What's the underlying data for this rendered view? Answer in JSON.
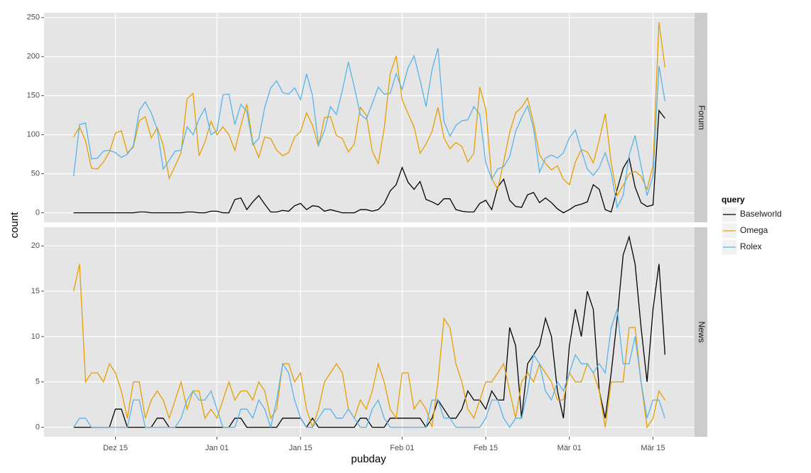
{
  "chart_data": [
    {
      "type": "line",
      "strip": "Forum",
      "ylabel": "count",
      "legend_title": "query",
      "x": [
        "Dez 08",
        "Dez 09",
        "Dez 10",
        "Dez 11",
        "Dez 12",
        "Dez 13",
        "Dez 14",
        "Dez 15",
        "Dez 16",
        "Dez 17",
        "Dez 18",
        "Dez 19",
        "Dez 20",
        "Dez 21",
        "Dez 22",
        "Dez 23",
        "Dez 24",
        "Dez 25",
        "Dez 26",
        "Dez 27",
        "Dez 28",
        "Dez 29",
        "Dez 30",
        "Dez 31",
        "Jan 01",
        "Jan 02",
        "Jan 03",
        "Jan 04",
        "Jan 05",
        "Jan 06",
        "Jan 07",
        "Jan 08",
        "Jan 09",
        "Jan 10",
        "Jan 11",
        "Jan 12",
        "Jan 13",
        "Jan 14",
        "Jan 15",
        "Jan 16",
        "Jan 17",
        "Jan 18",
        "Jan 19",
        "Jan 20",
        "Jan 21",
        "Jan 22",
        "Jan 23",
        "Jan 24",
        "Jan 25",
        "Jan 26",
        "Jan 27",
        "Jan 28",
        "Jan 29",
        "Jan 30",
        "Jan 31",
        "Feb 01",
        "Feb 02",
        "Feb 03",
        "Feb 04",
        "Feb 05",
        "Feb 06",
        "Feb 07",
        "Feb 08",
        "Feb 09",
        "Feb 10",
        "Feb 11",
        "Feb 12",
        "Feb 13",
        "Feb 14",
        "Feb 15",
        "Feb 16",
        "Feb 17",
        "Feb 18",
        "Feb 19",
        "Feb 20",
        "Feb 21",
        "Feb 22",
        "Feb 23",
        "Feb 24",
        "Feb 25",
        "Feb 26",
        "Feb 27",
        "Feb 28",
        "Mär 01",
        "Mär 02",
        "Mär 03",
        "Mär 04",
        "Mär 05",
        "Mär 06",
        "Mär 07",
        "Mär 08",
        "Mär 09",
        "Mär 10",
        "Mär 11",
        "Mär 12",
        "Mär 13",
        "Mär 14",
        "Mär 15",
        "Mär 16",
        "Mär 17"
      ],
      "xticks": [
        "Dez 15",
        "Jan 01",
        "Jan 15",
        "Feb 01",
        "Feb 15",
        "Mär 01",
        "Mär 15"
      ],
      "ylim": [
        -12.2,
        256.2
      ],
      "yticks": [
        0,
        50,
        100,
        150,
        200,
        250
      ],
      "grid": true,
      "series": [
        {
          "name": "Baselworld",
          "color": "#000000",
          "values": [
            0,
            0,
            0,
            0,
            0,
            0,
            0,
            0,
            0,
            0,
            0,
            1,
            1,
            0,
            0,
            0,
            0,
            0,
            0,
            1,
            1,
            0,
            0,
            2,
            2,
            0,
            0,
            17,
            19,
            4,
            14,
            22,
            11,
            1,
            1,
            3,
            2,
            9,
            12,
            4,
            9,
            8,
            2,
            4,
            2,
            0,
            0,
            0,
            4,
            4,
            2,
            4,
            12,
            28,
            36,
            58,
            39,
            30,
            40,
            17,
            14,
            10,
            18,
            18,
            4,
            2,
            1,
            1,
            12,
            16,
            4,
            33,
            43,
            16,
            8,
            7,
            23,
            26,
            13,
            19,
            13,
            5,
            0,
            4,
            9,
            11,
            14,
            36,
            30,
            4,
            1,
            30,
            57,
            70,
            33,
            13,
            8,
            10,
            131,
            121
          ]
        },
        {
          "name": "Omega",
          "color": "#E69F00",
          "values": [
            97,
            110,
            92,
            57,
            56,
            65,
            78,
            102,
            105,
            77,
            84,
            118,
            123,
            96,
            109,
            87,
            44,
            60,
            77,
            146,
            153,
            73,
            91,
            117,
            100,
            110,
            100,
            80,
            112,
            139,
            90,
            71,
            97,
            95,
            80,
            73,
            77,
            97,
            104,
            128,
            112,
            85,
            122,
            123,
            99,
            95,
            78,
            88,
            135,
            125,
            79,
            63,
            108,
            178,
            201,
            145,
            127,
            110,
            76,
            88,
            104,
            135,
            96,
            82,
            90,
            85,
            65,
            76,
            161,
            133,
            44,
            30,
            65,
            103,
            128,
            135,
            147,
            115,
            74,
            63,
            55,
            60,
            43,
            36,
            65,
            81,
            78,
            64,
            93,
            127,
            64,
            22,
            35,
            50,
            53,
            47,
            30,
            60,
            244,
            186
          ]
        },
        {
          "name": "Rolex",
          "color": "#56B4E9",
          "values": [
            47,
            113,
            115,
            69,
            70,
            79,
            80,
            77,
            71,
            75,
            86,
            131,
            142,
            128,
            107,
            56,
            67,
            79,
            80,
            110,
            100,
            120,
            134,
            100,
            105,
            151,
            152,
            113,
            139,
            130,
            87,
            95,
            135,
            160,
            169,
            154,
            152,
            160,
            145,
            178,
            150,
            87,
            105,
            136,
            126,
            157,
            193,
            161,
            126,
            120,
            140,
            161,
            152,
            153,
            178,
            158,
            186,
            201,
            170,
            136,
            183,
            211,
            117,
            98,
            112,
            118,
            119,
            136,
            126,
            64,
            43,
            56,
            59,
            72,
            104,
            122,
            137,
            108,
            52,
            70,
            74,
            70,
            77,
            96,
            106,
            80,
            56,
            48,
            58,
            77,
            52,
            7,
            22,
            74,
            99,
            60,
            22,
            47,
            188,
            143
          ]
        }
      ]
    },
    {
      "type": "line",
      "strip": "News",
      "xlabel": "pubday",
      "x": [
        "Dez 08",
        "Dez 09",
        "Dez 10",
        "Dez 11",
        "Dez 12",
        "Dez 13",
        "Dez 14",
        "Dez 15",
        "Dez 16",
        "Dez 17",
        "Dez 18",
        "Dez 19",
        "Dez 20",
        "Dez 21",
        "Dez 22",
        "Dez 23",
        "Dez 24",
        "Dez 25",
        "Dez 26",
        "Dez 27",
        "Dez 28",
        "Dez 29",
        "Dez 30",
        "Dez 31",
        "Jan 01",
        "Jan 02",
        "Jan 03",
        "Jan 04",
        "Jan 05",
        "Jan 06",
        "Jan 07",
        "Jan 08",
        "Jan 09",
        "Jan 10",
        "Jan 11",
        "Jan 12",
        "Jan 13",
        "Jan 14",
        "Jan 15",
        "Jan 16",
        "Jan 17",
        "Jan 18",
        "Jan 19",
        "Jan 20",
        "Jan 21",
        "Jan 22",
        "Jan 23",
        "Jan 24",
        "Jan 25",
        "Jan 26",
        "Jan 27",
        "Jan 28",
        "Jan 29",
        "Jan 30",
        "Jan 31",
        "Feb 01",
        "Feb 02",
        "Feb 03",
        "Feb 04",
        "Feb 05",
        "Feb 06",
        "Feb 07",
        "Feb 08",
        "Feb 09",
        "Feb 10",
        "Feb 11",
        "Feb 12",
        "Feb 13",
        "Feb 14",
        "Feb 15",
        "Feb 16",
        "Feb 17",
        "Feb 18",
        "Feb 19",
        "Feb 20",
        "Feb 21",
        "Feb 22",
        "Feb 23",
        "Feb 24",
        "Feb 25",
        "Feb 26",
        "Feb 27",
        "Feb 28",
        "Mär 01",
        "Mär 02",
        "Mär 03",
        "Mär 04",
        "Mär 05",
        "Mär 06",
        "Mär 07",
        "Mär 08",
        "Mär 09",
        "Mär 10",
        "Mär 11",
        "Mär 12",
        "Mär 13",
        "Mär 14",
        "Mär 15",
        "Mär 16",
        "Mär 17"
      ],
      "xticks": [
        "Dez 15",
        "Jan 01",
        "Jan 15",
        "Feb 01",
        "Feb 15",
        "Mär 01",
        "Mär 15"
      ],
      "ylim": [
        -1.05,
        22.05
      ],
      "yticks": [
        0,
        5,
        10,
        15,
        20
      ],
      "grid": true,
      "series": [
        {
          "name": "Baselworld",
          "color": "#000000",
          "values": [
            0,
            0,
            0,
            0,
            0,
            0,
            0,
            2,
            2,
            0,
            0,
            0,
            0,
            0,
            1,
            1,
            0,
            0,
            0,
            0,
            0,
            0,
            0,
            0,
            0,
            0,
            0,
            1,
            1,
            0,
            0,
            0,
            0,
            0,
            0,
            1,
            1,
            1,
            1,
            0,
            1,
            0,
            0,
            0,
            0,
            0,
            0,
            0,
            1,
            1,
            0,
            0,
            0,
            1,
            1,
            1,
            1,
            1,
            1,
            0,
            1,
            3,
            2,
            1,
            1,
            2,
            4,
            3,
            3,
            2,
            4,
            3,
            3,
            11,
            9,
            1,
            7,
            8,
            9,
            12,
            10,
            4,
            1,
            9,
            13,
            10,
            15,
            13,
            4,
            1,
            6,
            12,
            19,
            21,
            18,
            11,
            5,
            13,
            18,
            8
          ]
        },
        {
          "name": "Omega",
          "color": "#E69F00",
          "values": [
            15,
            18,
            5,
            6,
            6,
            5,
            7,
            6,
            4,
            1,
            5,
            5,
            1,
            3,
            4,
            3,
            1,
            3,
            5,
            2,
            4,
            4,
            1,
            2,
            1,
            3,
            5,
            3,
            4,
            4,
            3,
            5,
            4,
            1,
            2,
            7,
            7,
            5,
            6,
            2,
            0,
            2,
            5,
            6,
            7,
            6,
            2,
            1,
            3,
            2,
            4,
            7,
            5,
            2,
            1,
            6,
            6,
            2,
            3,
            2,
            0,
            5,
            12,
            11,
            7,
            5,
            2,
            1,
            3,
            5,
            5,
            6,
            7,
            4,
            1,
            5,
            6,
            5,
            7,
            6,
            5,
            3,
            3,
            6,
            5,
            5,
            7,
            6,
            4,
            0,
            5,
            5,
            5,
            11,
            11,
            5,
            0,
            1,
            4,
            3
          ]
        },
        {
          "name": "Rolex",
          "color": "#56B4E9",
          "values": [
            0,
            1,
            1,
            0,
            0,
            0,
            0,
            0,
            0,
            0,
            3,
            3,
            0,
            0,
            0,
            0,
            0,
            0,
            1,
            3,
            4,
            3,
            3,
            4,
            2,
            0,
            0,
            0,
            2,
            2,
            1,
            3,
            2,
            0,
            3,
            7,
            6,
            3,
            1,
            0,
            0,
            1,
            2,
            2,
            1,
            1,
            2,
            1,
            0,
            0,
            2,
            3,
            1,
            0,
            0,
            0,
            0,
            0,
            0,
            0,
            3,
            3,
            1,
            1,
            0,
            0,
            0,
            0,
            0,
            1,
            3,
            3,
            1,
            0,
            1,
            1,
            4,
            8,
            7,
            4,
            3,
            5,
            4,
            6,
            8,
            7,
            7,
            6,
            7,
            6,
            11,
            13,
            7,
            7,
            10,
            5,
            1,
            3,
            3,
            1
          ]
        }
      ]
    }
  ]
}
